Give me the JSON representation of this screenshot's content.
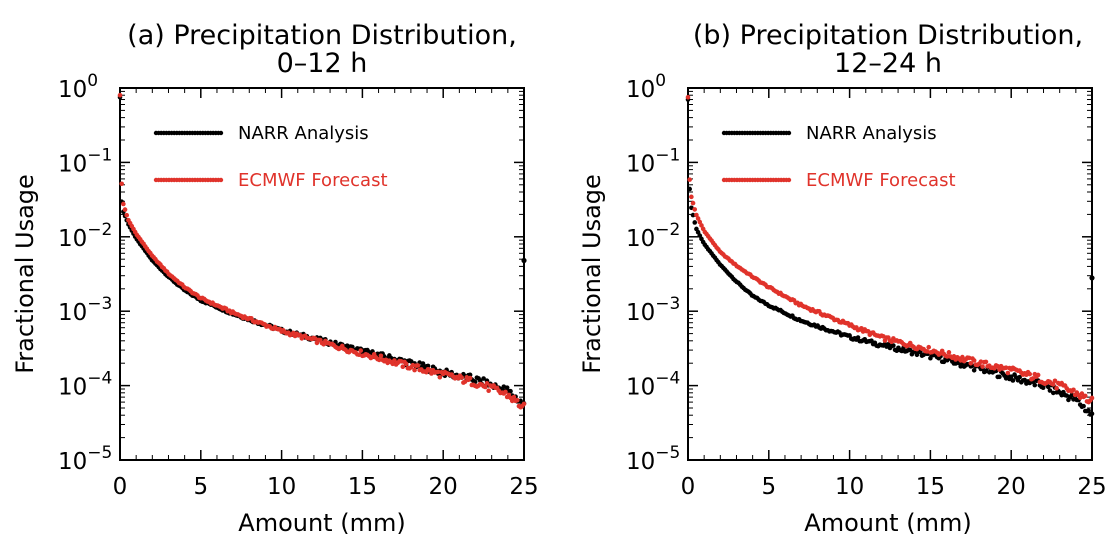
{
  "colors": {
    "narr": "#000000",
    "ecmwf": "#e0332b"
  },
  "chart_data": [
    {
      "type": "scatter",
      "title": "(a) Precipitation Distribution,",
      "subtitle": "0–12 h",
      "xlabel": "Amount (mm)",
      "ylabel": "Fractional Usage",
      "xlim": [
        0,
        25
      ],
      "ylim": [
        1e-05,
        1
      ],
      "yscale": "log",
      "x_ticks": [
        0,
        5,
        10,
        15,
        20,
        25
      ],
      "y_ticks": [
        {
          "base": "10",
          "exp": "0"
        },
        {
          "base": "10",
          "exp": "−1"
        },
        {
          "base": "10",
          "exp": "−2"
        },
        {
          "base": "10",
          "exp": "−3"
        },
        {
          "base": "10",
          "exp": "−4"
        },
        {
          "base": "10",
          "exp": "−5"
        }
      ],
      "legend": "top-left",
      "series": [
        {
          "name": "NARR Analysis",
          "color": "#000000",
          "x": [
            0,
            0.1,
            0.2,
            0.5,
            1,
            2,
            3,
            4,
            5,
            7,
            10,
            12,
            15,
            18,
            20,
            22,
            24,
            25
          ],
          "y": [
            0.75,
            0.03,
            0.022,
            0.015,
            0.0095,
            0.0048,
            0.0029,
            0.0019,
            0.0014,
            0.00092,
            0.00055,
            0.00043,
            0.00029,
            0.0002,
            0.00015,
            0.00012,
            8.5e-05,
            5.5e-05
          ],
          "extra_points": [
            {
              "x": 25,
              "y": 0.0048
            }
          ]
        },
        {
          "name": "ECMWF Forecast",
          "color": "#e0332b",
          "x": [
            0,
            0.1,
            0.2,
            0.5,
            1,
            2,
            3,
            4,
            5,
            7,
            10,
            12,
            15,
            18,
            20,
            22,
            24,
            25
          ],
          "y": [
            0.8,
            0.053,
            0.028,
            0.017,
            0.011,
            0.0055,
            0.0032,
            0.0021,
            0.0015,
            0.00095,
            0.00054,
            0.00041,
            0.00027,
            0.00018,
            0.00014,
            0.00011,
            7.5e-05,
            5e-05
          ]
        }
      ]
    },
    {
      "type": "scatter",
      "title": "(b) Precipitation Distribution,",
      "subtitle": "12–24 h",
      "xlabel": "Amount (mm)",
      "ylabel": "Fractional Usage",
      "xlim": [
        0,
        25
      ],
      "ylim": [
        1e-05,
        1
      ],
      "yscale": "log",
      "x_ticks": [
        0,
        5,
        10,
        15,
        20,
        25
      ],
      "y_ticks": [
        {
          "base": "10",
          "exp": "0"
        },
        {
          "base": "10",
          "exp": "−1"
        },
        {
          "base": "10",
          "exp": "−2"
        },
        {
          "base": "10",
          "exp": "−3"
        },
        {
          "base": "10",
          "exp": "−4"
        },
        {
          "base": "10",
          "exp": "−5"
        }
      ],
      "legend": "top-left",
      "series": [
        {
          "name": "NARR Analysis",
          "color": "#000000",
          "x": [
            0,
            0.1,
            0.2,
            0.5,
            1,
            2,
            3,
            4,
            5,
            7,
            10,
            12,
            15,
            18,
            20,
            22,
            24,
            25
          ],
          "y": [
            0.7,
            0.045,
            0.025,
            0.013,
            0.008,
            0.0042,
            0.0025,
            0.0016,
            0.0012,
            0.00075,
            0.00045,
            0.00035,
            0.00025,
            0.00017,
            0.00013,
            0.0001,
            6.5e-05,
            4e-05
          ],
          "extra_points": [
            {
              "x": 25,
              "y": 0.0028
            }
          ]
        },
        {
          "name": "ECMWF Forecast",
          "color": "#e0332b",
          "x": [
            0,
            0.1,
            0.2,
            0.5,
            1,
            2,
            3,
            4,
            5,
            7,
            10,
            12,
            15,
            18,
            20,
            22,
            24,
            25
          ],
          "y": [
            0.75,
            0.06,
            0.035,
            0.02,
            0.012,
            0.0062,
            0.0041,
            0.0029,
            0.0021,
            0.0012,
            0.00065,
            0.00044,
            0.0003,
            0.0002,
            0.00016,
            0.00012,
            8e-05,
            6e-05
          ]
        }
      ]
    }
  ]
}
